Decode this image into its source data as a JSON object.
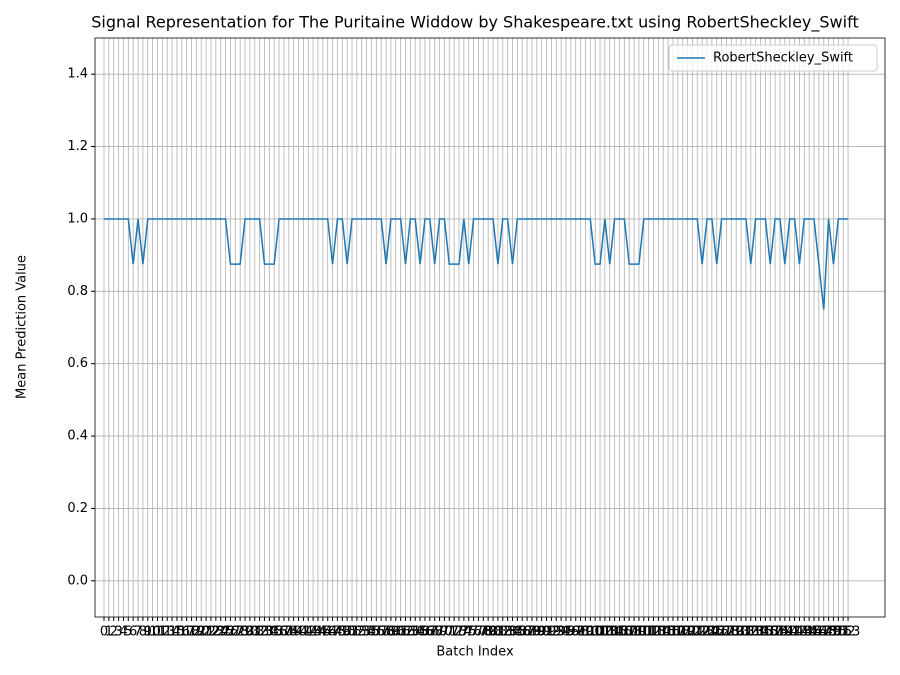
{
  "chart_data": {
    "type": "line",
    "title": "Signal Representation for The Puritaine Widdow by Shakespeare.txt using RobertSheckley_Swift",
    "x_label": "Batch Index",
    "y_label": "Mean Prediction Value",
    "x": [
      0,
      1,
      2,
      3,
      4,
      5,
      6,
      7,
      8,
      9,
      10,
      11,
      12,
      13,
      14,
      15,
      16,
      17,
      18,
      19,
      20,
      21,
      22,
      23,
      24,
      25,
      26,
      27,
      28,
      29,
      30,
      31,
      32,
      33,
      34,
      35,
      36,
      37,
      38,
      39,
      40,
      41,
      42,
      43,
      44,
      45,
      46,
      47,
      48,
      49,
      50,
      51,
      52,
      53,
      54,
      55,
      56,
      57,
      58,
      59,
      60,
      61,
      62,
      63,
      64,
      65,
      66,
      67,
      68,
      69,
      70,
      71,
      72,
      73,
      74,
      75,
      76,
      77,
      78,
      79,
      80,
      81,
      82,
      83,
      84,
      85,
      86,
      87,
      88,
      89,
      90,
      91,
      92,
      93,
      94,
      95,
      96,
      97,
      98,
      99,
      100,
      101,
      102,
      103,
      104,
      105,
      106,
      107,
      108,
      109,
      110,
      111,
      112,
      113,
      114,
      115,
      116,
      117,
      118,
      119,
      120,
      121,
      122,
      123,
      124,
      125,
      126,
      127,
      128,
      129,
      130,
      131,
      132,
      133,
      134,
      135,
      136,
      137,
      138,
      139,
      140,
      141,
      142,
      143,
      144,
      145,
      146,
      147,
      148,
      149,
      150,
      151,
      152,
      153
    ],
    "series": [
      {
        "name": "RobertSheckley_Swift",
        "color": "#1f77b4",
        "values": [
          1,
          1,
          1,
          1,
          1,
          1,
          0.875,
          1,
          0.875,
          1,
          1,
          1,
          1,
          1,
          1,
          1,
          1,
          1,
          1,
          1,
          1,
          1,
          1,
          1,
          1,
          1,
          0.875,
          0.875,
          0.875,
          1,
          1,
          1,
          1,
          0.875,
          0.875,
          0.875,
          1,
          1,
          1,
          1,
          1,
          1,
          1,
          1,
          1,
          1,
          1,
          0.875,
          1,
          1,
          0.875,
          1,
          1,
          1,
          1,
          1,
          1,
          1,
          0.875,
          1,
          1,
          1,
          0.875,
          1,
          1,
          0.875,
          1,
          1,
          0.875,
          1,
          1,
          0.875,
          0.875,
          0.875,
          1,
          0.875,
          1,
          1,
          1,
          1,
          1,
          0.875,
          1,
          1,
          0.875,
          1,
          1,
          1,
          1,
          1,
          1,
          1,
          1,
          1,
          1,
          1,
          1,
          1,
          1,
          1,
          1,
          0.875,
          0.875,
          1,
          0.875,
          1,
          1,
          1,
          0.875,
          0.875,
          0.875,
          1,
          1,
          1,
          1,
          1,
          1,
          1,
          1,
          1,
          1,
          1,
          1,
          0.875,
          1,
          1,
          0.875,
          1,
          1,
          1,
          1,
          1,
          1,
          0.875,
          1,
          1,
          1,
          0.875,
          1,
          1,
          0.875,
          1,
          1,
          0.875,
          1,
          1,
          1,
          0.875,
          0.75,
          1,
          0.875,
          1,
          1,
          1
        ]
      }
    ],
    "xlim": [
      -1.85,
      160.6
    ],
    "ylim": [
      -0.1,
      1.5
    ],
    "xticks": [
      0,
      1,
      2,
      3,
      4,
      5,
      6,
      7,
      8,
      9,
      10,
      11,
      12,
      13,
      14,
      15,
      16,
      17,
      18,
      19,
      20,
      21,
      22,
      23,
      24,
      25,
      26,
      27,
      28,
      29,
      30,
      31,
      32,
      33,
      34,
      35,
      36,
      37,
      38,
      39,
      40,
      41,
      42,
      43,
      44,
      45,
      46,
      47,
      48,
      49,
      50,
      51,
      52,
      53,
      54,
      55,
      56,
      57,
      58,
      59,
      60,
      61,
      62,
      63,
      64,
      65,
      66,
      67,
      68,
      69,
      70,
      71,
      72,
      73,
      74,
      75,
      76,
      77,
      78,
      79,
      80,
      81,
      82,
      83,
      84,
      85,
      86,
      87,
      88,
      89,
      90,
      91,
      92,
      93,
      94,
      95,
      96,
      97,
      98,
      99,
      100,
      101,
      102,
      103,
      104,
      105,
      106,
      107,
      108,
      109,
      110,
      111,
      112,
      113,
      114,
      115,
      116,
      117,
      118,
      119,
      120,
      121,
      122,
      123,
      124,
      125,
      126,
      127,
      128,
      129,
      130,
      131,
      132,
      133,
      134,
      135,
      136,
      137,
      138,
      139,
      140,
      141,
      142,
      143,
      144,
      145,
      146,
      147,
      148,
      149,
      150,
      151,
      152,
      153
    ],
    "yticks": [
      {
        "value": 0,
        "label": "0.0"
      },
      {
        "value": 0.2,
        "label": "0.2"
      },
      {
        "value": 0.4,
        "label": "0.4"
      },
      {
        "value": 0.6,
        "label": "0.6"
      },
      {
        "value": 0.8,
        "label": "0.8"
      },
      {
        "value": 1,
        "label": "1.0"
      },
      {
        "value": 1.2,
        "label": "1.2"
      },
      {
        "value": 1.4,
        "label": "1.4"
      }
    ],
    "grid": true,
    "legend": "upper right"
  }
}
